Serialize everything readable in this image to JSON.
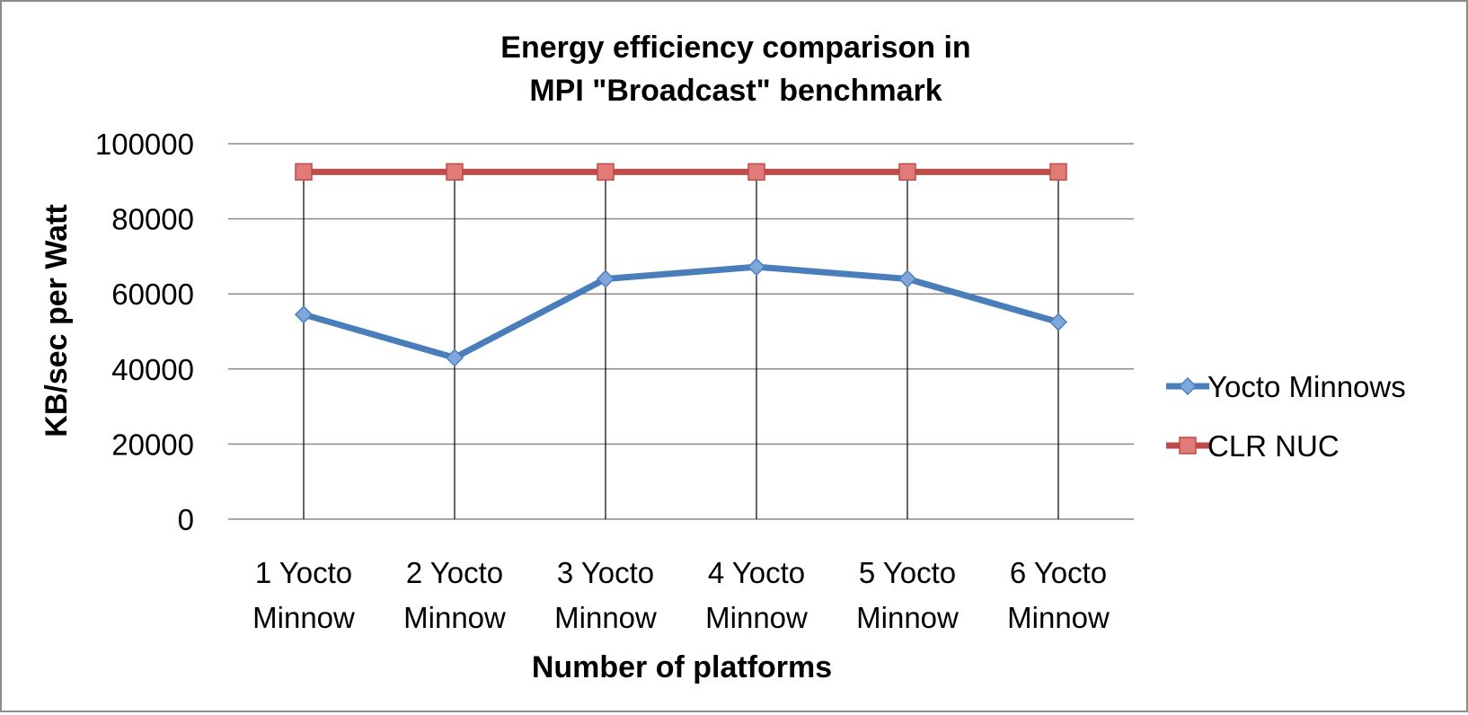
{
  "chart_data": {
    "type": "line",
    "title": "Energy efficiency comparison in MPI \"Broadcast\" benchmark",
    "title_lines": [
      "Energy efficiency comparison in",
      "MPI \"Broadcast\" benchmark"
    ],
    "xlabel": "Number of platforms",
    "ylabel": "KB/sec per Watt",
    "categories": [
      [
        "1 Yocto",
        "Minnow"
      ],
      [
        "2 Yocto",
        "Minnow"
      ],
      [
        "3 Yocto",
        "Minnow"
      ],
      [
        "4 Yocto",
        "Minnow"
      ],
      [
        "5 Yocto",
        "Minnow"
      ],
      [
        "6 Yocto",
        "Minnow"
      ]
    ],
    "ylim": [
      0,
      100000
    ],
    "yticks": [
      "0",
      "20000",
      "40000",
      "60000",
      "80000",
      "100000"
    ],
    "grid": "horizontal",
    "drop_lines": true,
    "legend_position": "right",
    "series": [
      {
        "name": "Yocto Minnows",
        "values": [
          54500,
          43000,
          64000,
          67200,
          64000,
          52500
        ],
        "color": "#4a7ebb",
        "marker": "diamond"
      },
      {
        "name": "CLR NUC",
        "values": [
          92500,
          92500,
          92500,
          92500,
          92500,
          92500
        ],
        "color": "#be4b48",
        "marker": "square"
      }
    ]
  }
}
